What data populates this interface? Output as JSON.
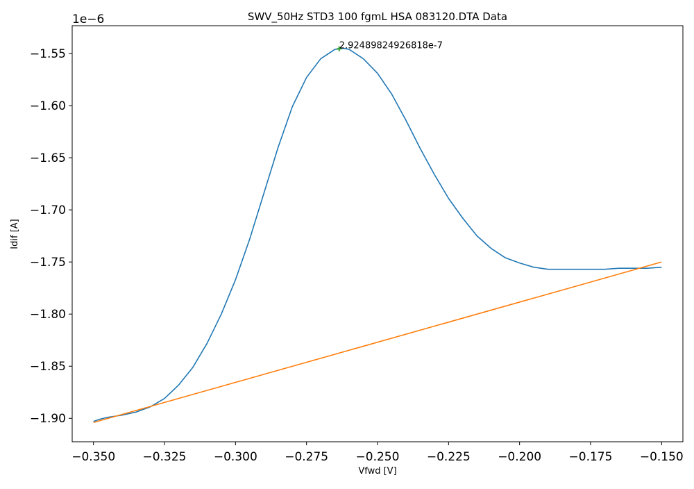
{
  "chart_data": {
    "type": "line",
    "title": "SWV_50Hz STD3 100 fgmL HSA 083120.DTA Data",
    "xlabel": "Vfwd [V]",
    "ylabel": "Idif [A]",
    "y_offset_label": "1e−6",
    "xlim": [
      -0.3575,
      -0.1425
    ],
    "ylim": [
      -1.9225,
      -1.5233
    ],
    "grid": false,
    "x_ticks": [
      -0.35,
      -0.325,
      -0.3,
      -0.275,
      -0.25,
      -0.225,
      -0.2,
      -0.175,
      -0.15
    ],
    "x_tick_labels": [
      "−0.350",
      "−0.325",
      "−0.300",
      "−0.275",
      "−0.250",
      "−0.225",
      "−0.200",
      "−0.175",
      "−0.150"
    ],
    "y_ticks": [
      -1.9,
      -1.85,
      -1.8,
      -1.75,
      -1.7,
      -1.65,
      -1.6,
      -1.55
    ],
    "y_tick_labels": [
      "−1.90",
      "−1.85",
      "−1.80",
      "−1.75",
      "−1.70",
      "−1.65",
      "−1.60",
      "−1.55"
    ],
    "series": [
      {
        "color": "#1f77b4",
        "x": [
          -0.35,
          -0.348,
          -0.345,
          -0.34,
          -0.335,
          -0.33,
          -0.325,
          -0.32,
          -0.315,
          -0.31,
          -0.305,
          -0.3,
          -0.295,
          -0.29,
          -0.285,
          -0.28,
          -0.275,
          -0.27,
          -0.265,
          -0.262,
          -0.26,
          -0.255,
          -0.25,
          -0.245,
          -0.24,
          -0.235,
          -0.23,
          -0.225,
          -0.22,
          -0.215,
          -0.21,
          -0.205,
          -0.2,
          -0.195,
          -0.19,
          -0.185,
          -0.18,
          -0.175,
          -0.17,
          -0.165,
          -0.16,
          -0.155,
          -0.15
        ],
        "y": [
          -1.903,
          -1.901,
          -1.899,
          -1.897,
          -1.894,
          -1.889,
          -1.881,
          -1.868,
          -1.851,
          -1.828,
          -1.8,
          -1.767,
          -1.728,
          -1.684,
          -1.64,
          -1.601,
          -1.573,
          -1.555,
          -1.546,
          -1.545,
          -1.546,
          -1.555,
          -1.569,
          -1.589,
          -1.614,
          -1.641,
          -1.666,
          -1.689,
          -1.708,
          -1.725,
          -1.737,
          -1.746,
          -1.751,
          -1.755,
          -1.757,
          -1.757,
          -1.757,
          -1.757,
          -1.757,
          -1.756,
          -1.756,
          -1.756,
          -1.755
        ]
      },
      {
        "color": "#ff7f0e",
        "x": [
          -0.35,
          -0.15
        ],
        "y": [
          -1.904,
          -1.75
        ]
      }
    ],
    "annotations": [
      {
        "text": "2.92489824926818e-7",
        "x": -0.2635,
        "y": -1.5455,
        "marker_color": "#2ca02c"
      }
    ]
  }
}
